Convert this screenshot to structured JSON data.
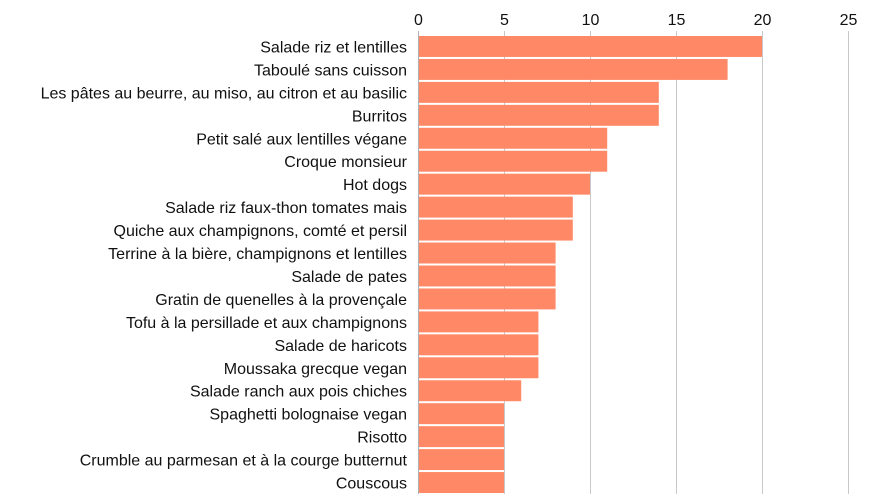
{
  "chart_data": {
    "type": "bar",
    "orientation": "horizontal",
    "x_axis_position": "top",
    "grid": true,
    "xlim": [
      0,
      25
    ],
    "xticks": [
      0,
      5,
      10,
      15,
      20,
      25
    ],
    "bar_color": "#ff8866",
    "categories": [
      "Salade riz et lentilles",
      "Taboulé sans cuisson",
      "Les pâtes au beurre, au miso, au citron et au basilic",
      "Burritos",
      "Petit salé aux lentilles végane",
      "Croque monsieur",
      "Hot dogs",
      "Salade riz faux-thon tomates mais",
      "Quiche aux champignons, comté et persil",
      "Terrine à la bière, champignons et lentilles",
      "Salade de pates",
      "Gratin de quenelles à la provençale",
      "Tofu à la persillade et aux champignons",
      "Salade de haricots",
      "Moussaka grecque vegan",
      "Salade ranch aux pois chiches",
      "Spaghetti bolognaise vegan",
      "Risotto",
      "Crumble au parmesan et à la courge butternut",
      "Couscous"
    ],
    "values": [
      20,
      18,
      14,
      14,
      11,
      11,
      10,
      9,
      9,
      8,
      8,
      8,
      7,
      7,
      7,
      6,
      5,
      5,
      5,
      5
    ]
  }
}
